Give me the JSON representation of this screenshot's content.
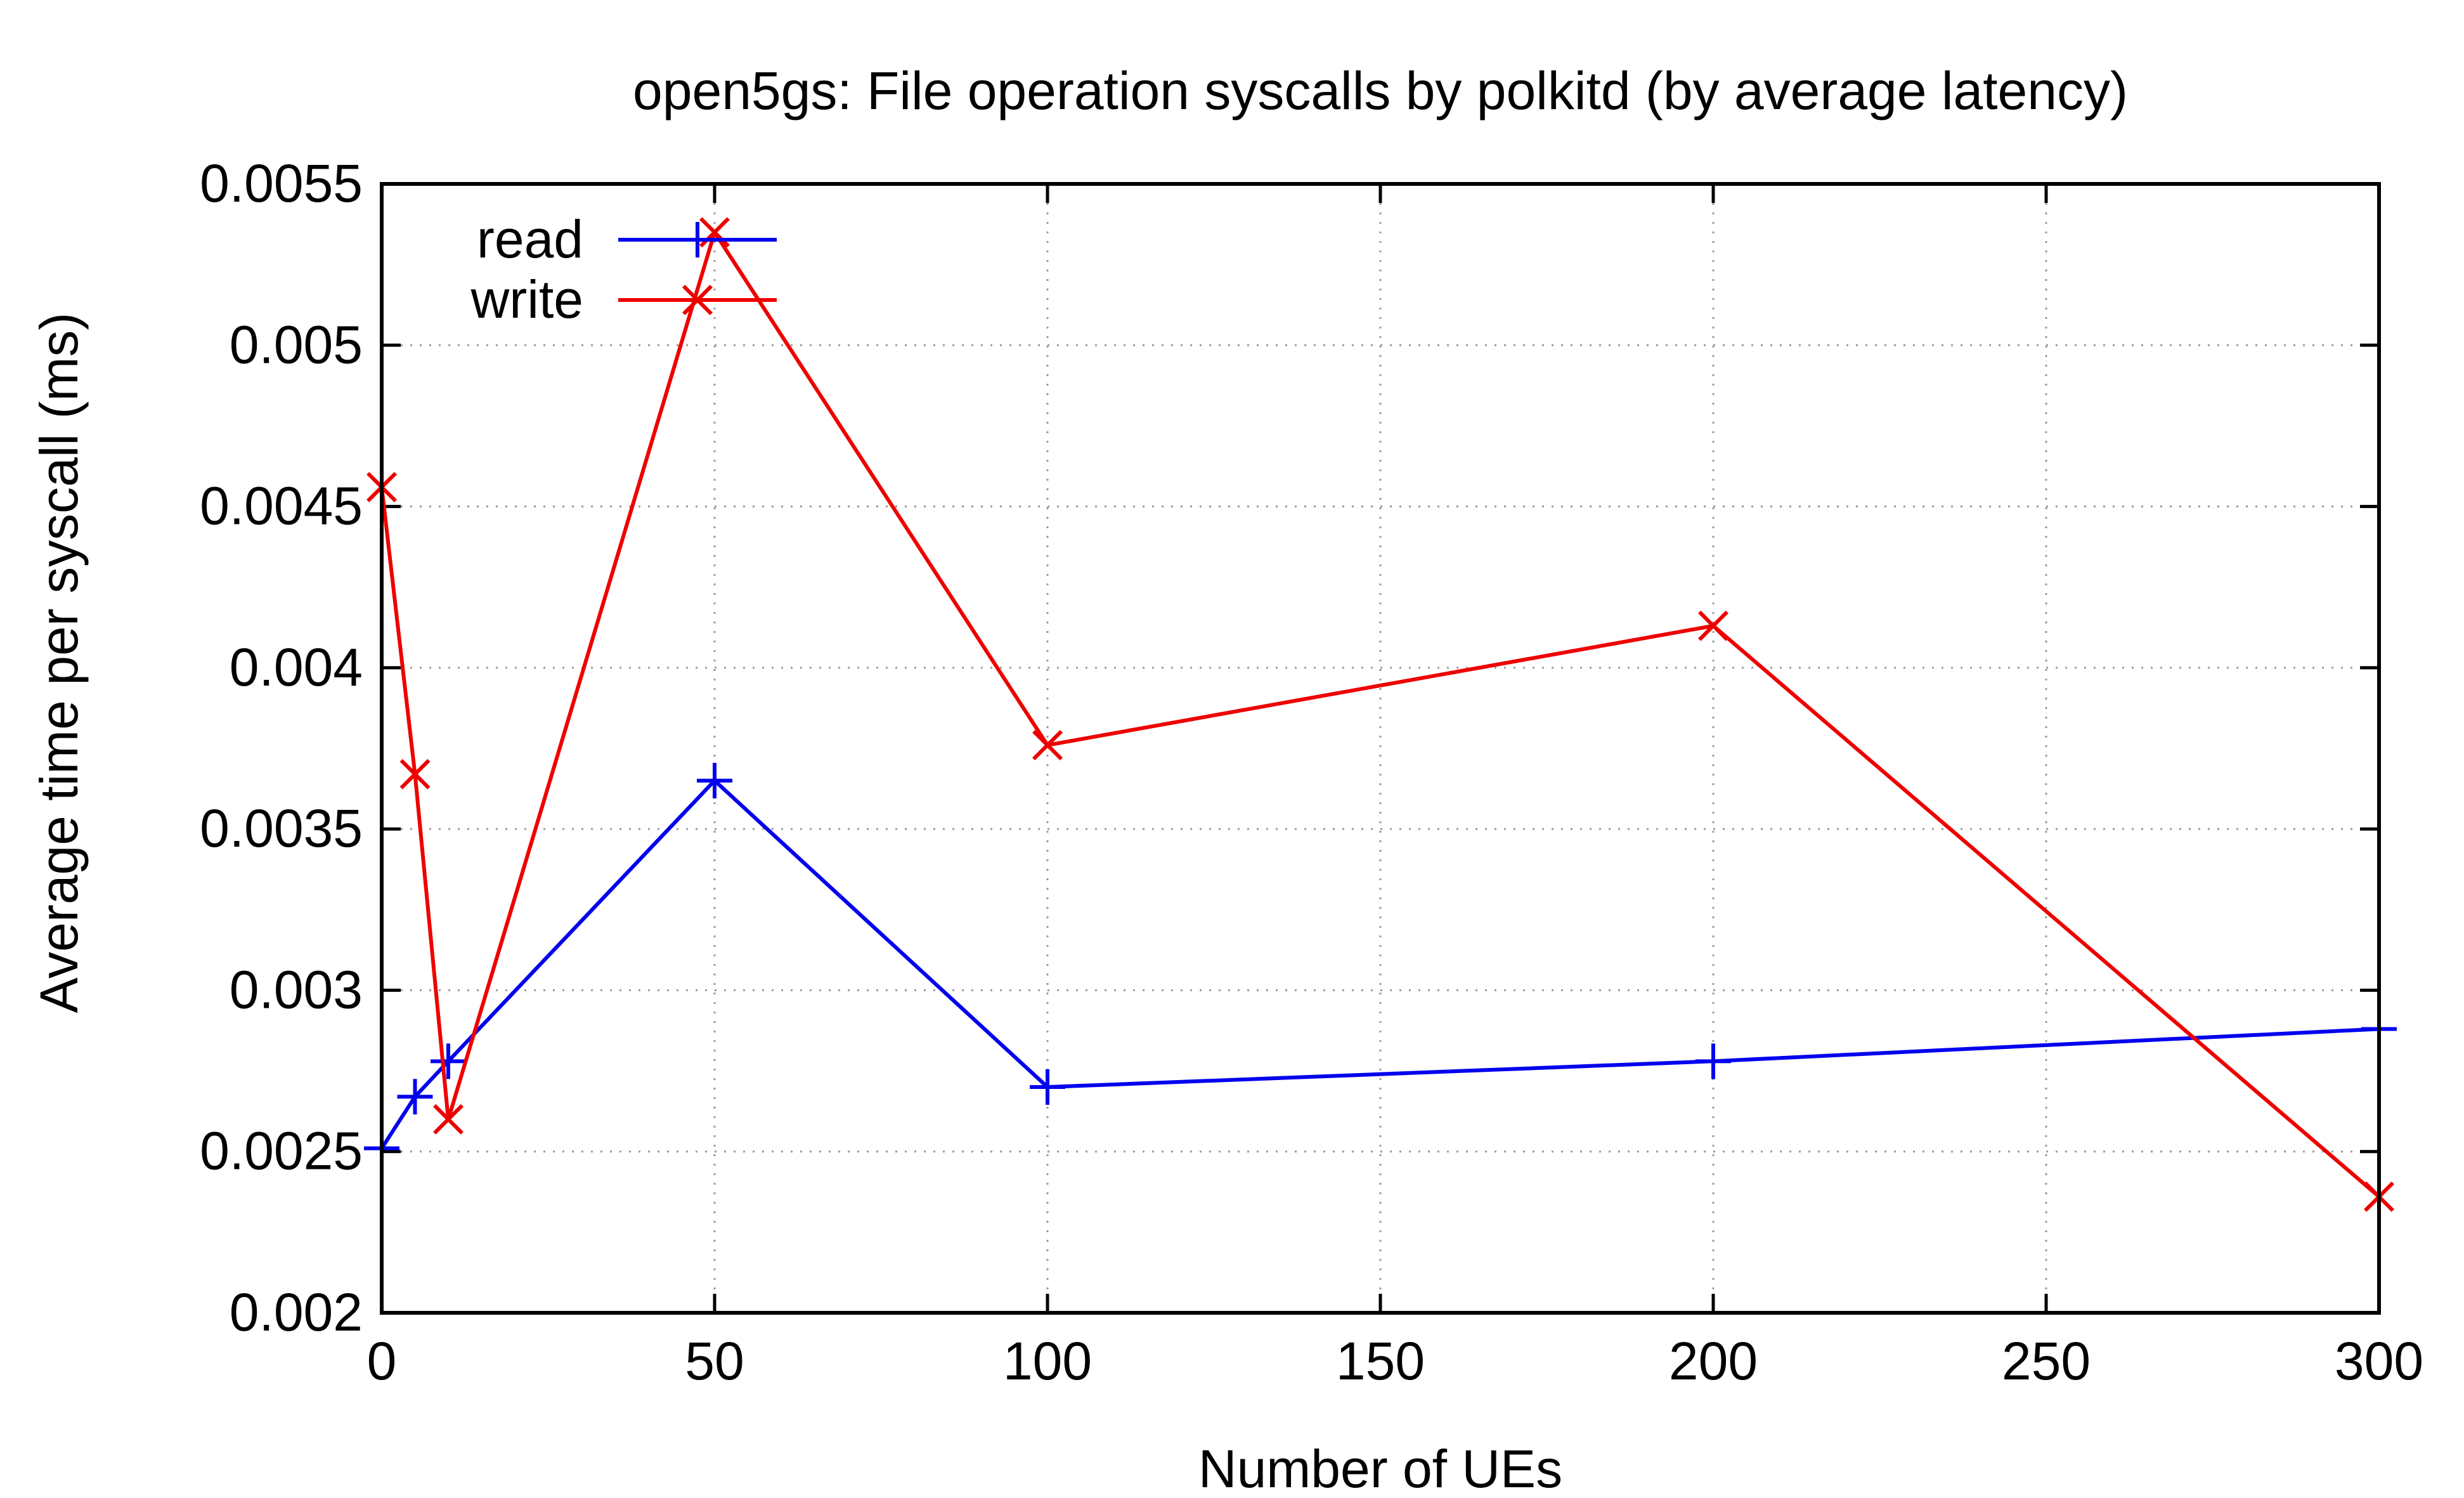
{
  "chart_data": {
    "type": "line",
    "title": "open5gs: File operation syscalls by polkitd (by average latency)",
    "xlabel": "Number of UEs",
    "ylabel": "Average time per syscall (ms)",
    "xlim": [
      0,
      300
    ],
    "ylim": [
      0.002,
      0.0055
    ],
    "x_ticks": [
      "0",
      "50",
      "100",
      "150",
      "200",
      "250",
      "300"
    ],
    "x_tick_values": [
      0,
      50,
      100,
      150,
      200,
      250,
      300
    ],
    "y_ticks": [
      "0.002",
      "0.0025",
      "0.003",
      "0.0035",
      "0.004",
      "0.0045",
      "0.005",
      "0.0055"
    ],
    "y_tick_values": [
      0.002,
      0.0025,
      0.003,
      0.0035,
      0.004,
      0.0045,
      0.005,
      0.0055
    ],
    "grid": true,
    "legend_position": "top-left",
    "series": [
      {
        "name": "read",
        "color": "#0000ee",
        "marker": "plus",
        "x": [
          0,
          5,
          10,
          50,
          100,
          200,
          300
        ],
        "y": [
          0.00251,
          0.00267,
          0.00278,
          0.00365,
          0.0027,
          0.00278,
          0.00288
        ]
      },
      {
        "name": "write",
        "color": "#ee0000",
        "marker": "cross",
        "x": [
          0,
          5,
          10,
          50,
          100,
          200,
          300
        ],
        "y": [
          0.00456,
          0.00367,
          0.0026,
          0.00535,
          0.00376,
          0.00413,
          0.00236
        ]
      }
    ]
  }
}
